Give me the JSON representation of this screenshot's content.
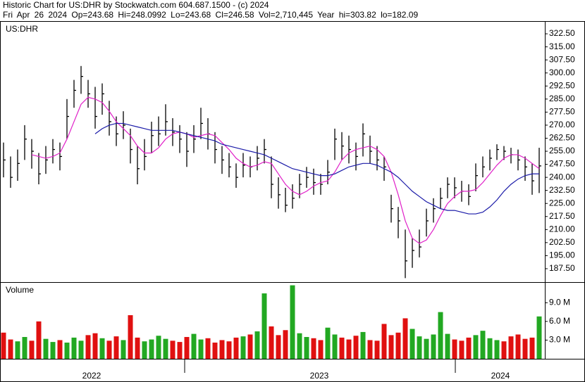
{
  "header": {
    "line1": "Historic Chart for US:DHR by Stockwatch.com 604.687.1500 - (c) 2024",
    "line2": "Fri Apr 26 2024  Op=243.68  Hi=248.0992  Lo=243.68  Cl=246.58  Vol=2,710,445  Year hi=303.82  lo=182.09"
  },
  "x_axis": {
    "labels": [
      "2022",
      "2023",
      "2024"
    ]
  },
  "chart_data": [
    {
      "type": "hlc",
      "label": "US:DHR",
      "color": "#000000",
      "high": [
        260,
        252,
        256,
        270,
        262,
        254,
        258,
        262,
        260,
        285,
        296,
        304,
        296,
        292,
        294,
        284,
        275,
        278,
        268,
        258,
        262,
        272,
        275,
        282,
        274,
        270,
        266,
        270,
        280,
        274,
        266,
        258,
        254,
        248,
        254,
        252,
        258,
        262,
        252,
        240,
        234,
        236,
        242,
        246,
        245,
        242,
        250,
        268,
        266,
        264,
        260,
        271,
        264,
        258,
        252,
        230,
        223,
        210,
        205,
        210,
        222,
        228,
        234,
        240,
        240,
        238,
        236,
        248,
        252,
        256,
        259,
        258,
        257,
        256,
        252,
        248,
        257
      ],
      "low": [
        240,
        234,
        238,
        250,
        245,
        236,
        242,
        248,
        244,
        262,
        280,
        288,
        280,
        268,
        276,
        264,
        258,
        262,
        248,
        236,
        244,
        254,
        258,
        264,
        258,
        254,
        246,
        254,
        262,
        256,
        248,
        242,
        240,
        234,
        240,
        240,
        244,
        248,
        228,
        222,
        220,
        222,
        228,
        234,
        230,
        230,
        236,
        250,
        250,
        248,
        244,
        252,
        248,
        244,
        238,
        214,
        205,
        182.09,
        188,
        194,
        206,
        214,
        222,
        228,
        228,
        226,
        224,
        232,
        240,
        244,
        250,
        250,
        248,
        244,
        238,
        230,
        231
      ],
      "close": [
        250,
        240,
        248,
        262,
        255,
        242,
        250,
        256,
        252,
        275,
        290,
        298,
        288,
        275,
        288,
        272,
        265,
        270,
        256,
        245,
        252,
        264,
        265,
        272,
        266,
        262,
        255,
        262,
        271,
        265,
        256,
        250,
        246,
        240,
        247,
        246,
        251,
        256,
        236,
        230,
        224,
        228,
        236,
        240,
        237,
        236,
        243,
        262,
        258,
        256,
        252,
        265,
        255,
        250,
        246,
        222,
        215,
        192,
        198,
        200,
        215,
        222,
        228,
        236,
        234,
        232,
        229,
        241,
        246,
        251,
        256,
        255,
        253,
        250,
        246,
        238,
        246.58
      ],
      "series": [
        {
          "color": "#e020c8",
          "values": [
            null,
            null,
            null,
            null,
            253,
            252,
            251,
            252,
            254,
            262,
            272,
            282,
            286,
            285,
            283,
            278,
            272,
            268,
            264,
            258,
            254,
            254,
            257,
            262,
            265,
            266,
            265,
            263,
            264,
            265,
            264,
            260,
            256,
            251,
            248,
            246,
            247,
            249,
            248,
            242,
            236,
            232,
            230,
            232,
            235,
            237,
            238,
            243,
            250,
            254,
            256,
            257,
            258,
            256,
            252,
            243,
            230,
            215,
            205,
            202,
            204,
            210,
            218,
            225,
            229,
            232,
            232,
            233,
            237,
            242,
            247,
            251,
            253,
            253,
            251,
            248,
            245
          ]
        },
        {
          "color": "#1a1aa8",
          "values": [
            null,
            null,
            null,
            null,
            null,
            null,
            null,
            null,
            null,
            null,
            null,
            null,
            null,
            265,
            268,
            270,
            271,
            271,
            270,
            269,
            268,
            267,
            267,
            267,
            267,
            266,
            265,
            264,
            263,
            262,
            261,
            259,
            258,
            257,
            256,
            255,
            254,
            253,
            251,
            249,
            247,
            245,
            244,
            243,
            242,
            241,
            241,
            242,
            244,
            246,
            247,
            248,
            248,
            247,
            245,
            243,
            240,
            236,
            232,
            229,
            226,
            224,
            222,
            221,
            221,
            220,
            219,
            219,
            220,
            223,
            227,
            232,
            236,
            239,
            241,
            242,
            242
          ]
        }
      ],
      "ylim": [
        179.8,
        329.8
      ],
      "yticks": [
        {
          "value": 187.5,
          "label": "187.50"
        },
        {
          "value": 195,
          "label": "195.00"
        },
        {
          "value": 202.5,
          "label": "202.50"
        },
        {
          "value": 210,
          "label": "210.00"
        },
        {
          "value": 217.5,
          "label": "217.50"
        },
        {
          "value": 225,
          "label": "225.00"
        },
        {
          "value": 232.5,
          "label": "232.50"
        },
        {
          "value": 240,
          "label": "240.00"
        },
        {
          "value": 247.5,
          "label": "247.50"
        },
        {
          "value": 255,
          "label": "255.00"
        },
        {
          "value": 262.5,
          "label": "262.50"
        },
        {
          "value": 270,
          "label": "270.00"
        },
        {
          "value": 277.5,
          "label": "277.50"
        },
        {
          "value": 285,
          "label": "285.00"
        },
        {
          "value": 292.5,
          "label": "292.50"
        },
        {
          "value": 300,
          "label": "300.00"
        },
        {
          "value": 307.5,
          "label": "307.50"
        },
        {
          "value": 315,
          "label": "315.00"
        },
        {
          "value": 322.5,
          "label": "322.50"
        }
      ]
    },
    {
      "type": "bar",
      "label": "Volume",
      "up_color": "#22a822",
      "down_color": "#e01010",
      "values": [
        4.2,
        3.1,
        2.8,
        3.5,
        2.9,
        6.0,
        3.2,
        2.7,
        3.0,
        2.6,
        3.4,
        2.9,
        3.8,
        4.1,
        3.3,
        2.9,
        3.6,
        3.0,
        7.0,
        3.4,
        2.8,
        3.1,
        3.7,
        3.2,
        2.9,
        2.7,
        3.5,
        4.0,
        3.1,
        3.3,
        2.6,
        3.0,
        2.8,
        3.4,
        3.6,
        3.9,
        4.4,
        10.5,
        5.2,
        3.8,
        4.6,
        11.8,
        4.1,
        3.5,
        3.3,
        3.0,
        5.0,
        3.9,
        3.4,
        3.1,
        3.7,
        4.3,
        3.0,
        2.9,
        5.6,
        3.8,
        4.2,
        6.5,
        4.8,
        3.6,
        3.2,
        3.9,
        7.5,
        4.0,
        3.1,
        2.9,
        3.4,
        3.8,
        4.5,
        3.3,
        3.0,
        2.8,
        3.6,
        3.9,
        3.2,
        3.4,
        6.8
      ],
      "ylim": [
        0,
        12.2
      ],
      "yticks": [
        {
          "value": 3,
          "label": "3.0 M"
        },
        {
          "value": 6,
          "label": "6.0 M"
        },
        {
          "value": 9,
          "label": "9.0 M"
        }
      ]
    }
  ]
}
